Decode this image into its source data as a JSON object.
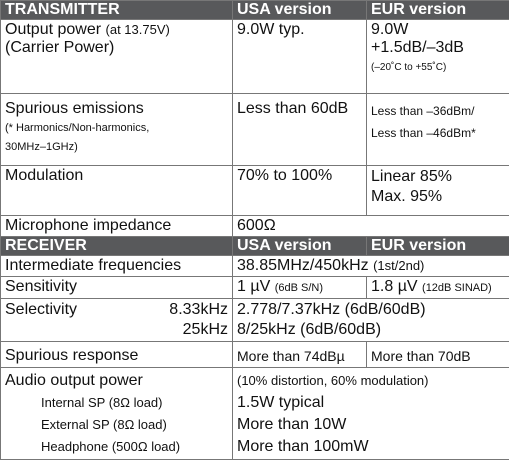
{
  "transmitter": {
    "header": {
      "c1": "TRANSMITTER",
      "c2": "USA version",
      "c3": "EUR version"
    },
    "output_power": {
      "label": "Output power",
      "note": "(at 13.75V)",
      "label2": "(Carrier Power)",
      "usa": "9.0W typ.",
      "eur1": "9.0W",
      "eur2": "+1.5dB/–3dB",
      "eur3": "(–20˚C to +55˚C)"
    },
    "spurious": {
      "label": "Spurious emissions",
      "note1": "(* Harmonics/Non-harmonics,",
      "note2": "30MHz–1GHz)",
      "usa": "Less than 60dB",
      "eur1": "Less than –36dBm/",
      "eur2": "Less than –46dBm*"
    },
    "modulation": {
      "label": "Modulation",
      "usa": "70% to 100%",
      "eur1": "Linear 85%",
      "eur2": "Max. 95%"
    },
    "mic": {
      "label": "Microphone impedance",
      "value": "600Ω"
    }
  },
  "receiver": {
    "header": {
      "c1": "RECEIVER",
      "c2": "USA version",
      "c3": "EUR version"
    },
    "if": {
      "label": "Intermediate frequencies",
      "value": "38.85MHz/450kHz",
      "note": "(1st/2nd)"
    },
    "sensitivity": {
      "label": "Sensitivity",
      "usa": "1 µV",
      "usa_note": "(6dB S/N)",
      "eur": "1.8 µV",
      "eur_note": "(12dB SINAD)"
    },
    "selectivity": {
      "label": "Selectivity",
      "f1": "8.33kHz",
      "v1": "2.778/7.37kHz (6dB/60dB)",
      "f2": "25kHz",
      "v2": "8/25kHz (6dB/60dB)"
    },
    "spurious_resp": {
      "label": "Spurious response",
      "usa": "More than 74dBµ",
      "eur": "More than 70dB"
    },
    "audio": {
      "label": "Audio output power",
      "note": "(10% distortion, 60% modulation)",
      "internal": "Internal SP (8Ω load)",
      "internal_v": "1.5W typical",
      "external": "External SP (8Ω load)",
      "external_v": "More than 10W",
      "headphone": "Headphone (500Ω load)",
      "headphone_v": "More than 100mW"
    }
  }
}
